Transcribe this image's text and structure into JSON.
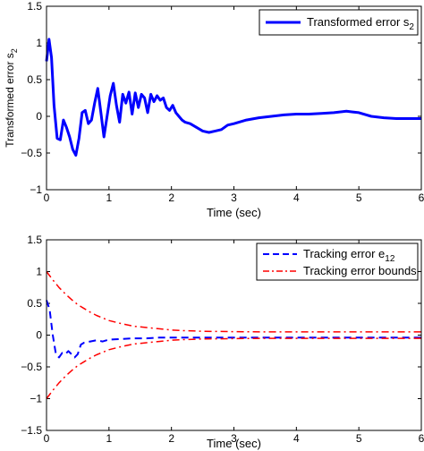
{
  "chart_data": [
    {
      "type": "line",
      "xlabel": "Time (sec)",
      "ylabel_main": "Transformed error s",
      "ylabel_sub": "2",
      "xlim": [
        0,
        6
      ],
      "ylim": [
        -1,
        1.5
      ],
      "xticks": [
        "0",
        "1",
        "2",
        "3",
        "4",
        "5",
        "6"
      ],
      "yticks": [
        "−1",
        "−0.5",
        "0",
        "0.5",
        "1",
        "1.5"
      ],
      "legend_position": "top-right",
      "colors": {
        "s2": "#0000ff"
      },
      "series": [
        {
          "key": "s2",
          "name": "Transformed error s",
          "name_sub": "2",
          "style": "solid",
          "x": [
            0,
            0.04,
            0.08,
            0.12,
            0.17,
            0.22,
            0.27,
            0.32,
            0.37,
            0.42,
            0.47,
            0.52,
            0.57,
            0.62,
            0.67,
            0.72,
            0.77,
            0.82,
            0.87,
            0.92,
            0.97,
            1.02,
            1.07,
            1.12,
            1.17,
            1.22,
            1.27,
            1.32,
            1.37,
            1.42,
            1.47,
            1.52,
            1.57,
            1.62,
            1.67,
            1.72,
            1.77,
            1.82,
            1.87,
            1.92,
            1.97,
            2.02,
            2.07,
            2.12,
            2.17,
            2.22,
            2.3,
            2.4,
            2.5,
            2.6,
            2.7,
            2.8,
            2.9,
            3.0,
            3.2,
            3.4,
            3.6,
            3.8,
            4.0,
            4.2,
            4.4,
            4.6,
            4.8,
            4.9,
            5.0,
            5.2,
            5.4,
            5.6,
            5.8,
            6.0
          ],
          "y": [
            0.75,
            1.05,
            0.8,
            0.15,
            -0.3,
            -0.32,
            -0.05,
            -0.15,
            -0.28,
            -0.45,
            -0.53,
            -0.3,
            0.05,
            0.08,
            -0.1,
            -0.05,
            0.18,
            0.38,
            0.05,
            -0.28,
            0.0,
            0.28,
            0.45,
            0.15,
            -0.08,
            0.3,
            0.18,
            0.33,
            0.03,
            0.32,
            0.12,
            0.3,
            0.25,
            0.05,
            0.3,
            0.2,
            0.28,
            0.22,
            0.25,
            0.12,
            0.08,
            0.15,
            0.05,
            0.0,
            -0.05,
            -0.08,
            -0.1,
            -0.15,
            -0.2,
            -0.22,
            -0.2,
            -0.18,
            -0.12,
            -0.1,
            -0.05,
            -0.02,
            0.0,
            0.02,
            0.03,
            0.03,
            0.04,
            0.05,
            0.07,
            0.06,
            0.05,
            0.0,
            -0.02,
            -0.03,
            -0.03,
            -0.03
          ]
        }
      ]
    },
    {
      "type": "line",
      "xlabel": "Time (sec)",
      "xlim": [
        0,
        6
      ],
      "ylim": [
        -1.5,
        1.5
      ],
      "xticks": [
        "0",
        "1",
        "2",
        "3",
        "4",
        "5",
        "6"
      ],
      "yticks": [
        "−1.5",
        "−1",
        "−0.5",
        "0",
        "0.5",
        "1",
        "1.5"
      ],
      "legend_position": "top-right",
      "colors": {
        "e12": "#0000ff",
        "bounds": "#ff0000"
      },
      "series": [
        {
          "key": "e12",
          "name": "Tracking error e",
          "name_sub": "12",
          "style": "dashed",
          "x": [
            0,
            0.05,
            0.1,
            0.15,
            0.2,
            0.25,
            0.3,
            0.35,
            0.4,
            0.45,
            0.5,
            0.55,
            0.6,
            0.7,
            0.8,
            0.9,
            1.0,
            1.2,
            1.4,
            1.6,
            1.8,
            2.0,
            2.5,
            3.0,
            4.0,
            5.0,
            6.0
          ],
          "y": [
            0.55,
            0.4,
            0.0,
            -0.3,
            -0.35,
            -0.28,
            -0.3,
            -0.25,
            -0.3,
            -0.35,
            -0.3,
            -0.15,
            -0.12,
            -0.1,
            -0.08,
            -0.1,
            -0.07,
            -0.06,
            -0.05,
            -0.05,
            -0.04,
            -0.04,
            -0.04,
            -0.04,
            -0.04,
            -0.04,
            -0.04
          ]
        },
        {
          "key": "bounds",
          "name": "Tracking error bounds",
          "style": "dash-dot",
          "x": [
            0,
            0.1,
            0.2,
            0.3,
            0.4,
            0.5,
            0.6,
            0.7,
            0.8,
            1.0,
            1.2,
            1.4,
            1.6,
            1.8,
            2.0,
            2.2,
            2.5,
            3.0,
            3.5,
            4.0,
            5.0,
            6.0
          ],
          "upper": [
            1.0,
            0.87,
            0.75,
            0.65,
            0.56,
            0.48,
            0.42,
            0.36,
            0.31,
            0.23,
            0.18,
            0.14,
            0.12,
            0.1,
            0.08,
            0.07,
            0.06,
            0.055,
            0.05,
            0.05,
            0.05,
            0.05
          ],
          "lower": [
            -1.0,
            -0.87,
            -0.75,
            -0.65,
            -0.56,
            -0.48,
            -0.42,
            -0.36,
            -0.31,
            -0.23,
            -0.18,
            -0.14,
            -0.12,
            -0.1,
            -0.08,
            -0.07,
            -0.06,
            -0.055,
            -0.05,
            -0.05,
            -0.05,
            -0.05
          ]
        }
      ]
    }
  ]
}
